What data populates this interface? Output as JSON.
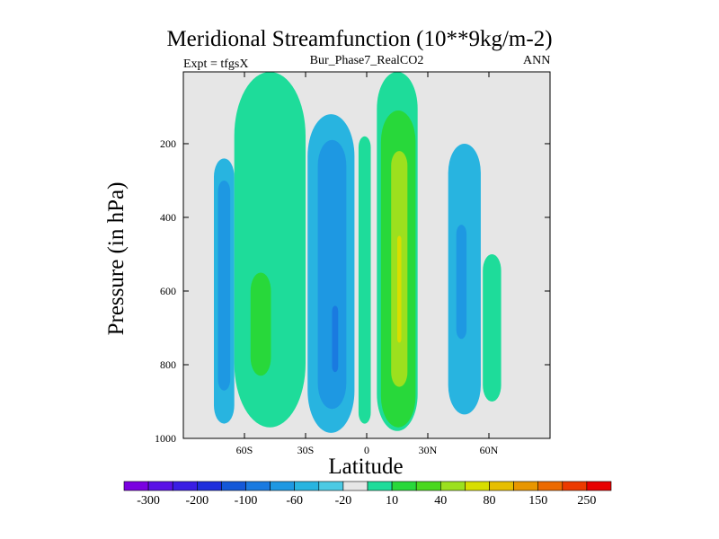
{
  "chart_data": {
    "type": "heatmap",
    "title": "Meridional Streamfunction (10**9kg/m-2)",
    "subtitle_left": "Expt = tfgsX",
    "subtitle_center": "Bur_Phase7_RealCO2",
    "subtitle_right": "ANN",
    "xlabel": "Latitude",
    "ylabel": "Pressure (in hPa)",
    "x_ticks": [
      {
        "value": -60,
        "label": "60S"
      },
      {
        "value": -30,
        "label": "30S"
      },
      {
        "value": 0,
        "label": "0"
      },
      {
        "value": 30,
        "label": "30N"
      },
      {
        "value": 60,
        "label": "60N"
      }
    ],
    "y_ticks": [
      {
        "value": 200,
        "label": "200"
      },
      {
        "value": 400,
        "label": "400"
      },
      {
        "value": 600,
        "label": "600"
      },
      {
        "value": 800,
        "label": "800"
      },
      {
        "value": 1000,
        "label": "1000"
      }
    ],
    "xlim": [
      -90,
      90
    ],
    "ylim": [
      1000,
      5
    ],
    "colorbar": {
      "colors": [
        "#7a00e0",
        "#5a12e6",
        "#3a1ee4",
        "#1e2edc",
        "#1458d8",
        "#1a7ae0",
        "#1e98e2",
        "#28b4e0",
        "#4ccae4",
        "#e6e6e6",
        "#1edc9a",
        "#28d83a",
        "#4ad81e",
        "#9ce01e",
        "#d8de00",
        "#e6be00",
        "#e89600",
        "#ec6a00",
        "#ec3a00",
        "#e80000"
      ],
      "labels": [
        "-300",
        "-200",
        "-100",
        "-60",
        "-20",
        "10",
        "40",
        "80",
        "150",
        "250"
      ]
    },
    "regions": [
      {
        "name": "sh-polar-low-cell",
        "level": -20,
        "lat_range": [
          -75,
          -65
        ],
        "p_range": [
          240,
          960
        ]
      },
      {
        "name": "sh-polar-low-core",
        "level": -60,
        "lat_range": [
          -73,
          -67
        ],
        "p_range": [
          300,
          870
        ]
      },
      {
        "name": "sh-ferrel-cell",
        "level": 10,
        "lat_range": [
          -65,
          -30
        ],
        "p_range": [
          5,
          970
        ]
      },
      {
        "name": "sh-ferrel-core",
        "level": 40,
        "lat_range": [
          -57,
          -47
        ],
        "p_range": [
          550,
          830
        ]
      },
      {
        "name": "sh-hadley-cell",
        "level": -20,
        "lat_range": [
          -29,
          -6
        ],
        "p_range": [
          120,
          985
        ]
      },
      {
        "name": "sh-hadley-core",
        "level": -60,
        "lat_range": [
          -24,
          -10
        ],
        "p_range": [
          190,
          920
        ]
      },
      {
        "name": "sh-hadley-peak",
        "level": -100,
        "lat_range": [
          -17,
          -14
        ],
        "p_range": [
          640,
          820
        ]
      },
      {
        "name": "equatorial-weak-cell",
        "level": 10,
        "lat_range": [
          -4,
          2
        ],
        "p_range": [
          180,
          960
        ]
      },
      {
        "name": "nh-hadley-cell",
        "level": 10,
        "lat_range": [
          5,
          25
        ],
        "p_range": [
          5,
          980
        ]
      },
      {
        "name": "nh-hadley-inner",
        "level": 40,
        "lat_range": [
          7,
          24
        ],
        "p_range": [
          110,
          970
        ]
      },
      {
        "name": "nh-hadley-core",
        "level": 80,
        "lat_range": [
          12,
          20
        ],
        "p_range": [
          220,
          860
        ]
      },
      {
        "name": "nh-hadley-peak",
        "level": 150,
        "lat_range": [
          15,
          17
        ],
        "p_range": [
          450,
          740
        ]
      },
      {
        "name": "nh-ferrel-cell",
        "level": -20,
        "lat_range": [
          40,
          56
        ],
        "p_range": [
          200,
          935
        ]
      },
      {
        "name": "nh-ferrel-core",
        "level": -60,
        "lat_range": [
          44,
          49
        ],
        "p_range": [
          420,
          730
        ]
      },
      {
        "name": "nh-polar-cell",
        "level": 10,
        "lat_range": [
          57,
          66
        ],
        "p_range": [
          500,
          900
        ]
      }
    ]
  }
}
